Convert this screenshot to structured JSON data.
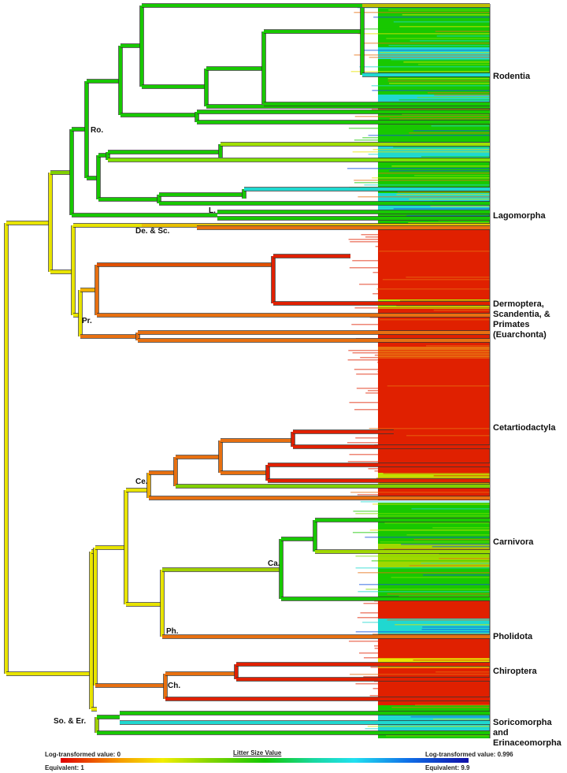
{
  "figure": {
    "type": "ancestral-state phylogeny",
    "trait": "Litter Size Value"
  },
  "clades": [
    {
      "id": "rodentia",
      "label": "Rodentia",
      "color": "#18c800"
    },
    {
      "id": "lagomorpha",
      "label": "Lagomorpha",
      "color": "#18c800"
    },
    {
      "id": "euarchonta",
      "label": "Dermoptera,\nScandentia, &\nPrimates\n(Euarchonta)",
      "color": "#e02000"
    },
    {
      "id": "cetartiodactyla",
      "label": "Cetartiodactyla",
      "color": "#e02000"
    },
    {
      "id": "carnivora",
      "label": "Carnivora",
      "color": "#18c800"
    },
    {
      "id": "pholidota",
      "label": "Pholidota",
      "color": "#e02000"
    },
    {
      "id": "chiroptera",
      "label": "Chiroptera",
      "color": "#e02000"
    },
    {
      "id": "soricomorpha",
      "label": "Soricomorpha and\nErinaceomorpha",
      "color": "#20c8c0"
    }
  ],
  "node_labels": [
    "Ro.",
    "L.",
    "De. & Sc.",
    "Pr.",
    "Ce.",
    "Ca.",
    "Ph.",
    "Ch.",
    "So. & Er."
  ],
  "legend": {
    "title": "Litter Size Value",
    "min_log": "Log-transformed value: 0",
    "min_equiv": "Equivalent: 1",
    "max_log": "Log-transformed value: 0.996",
    "max_equiv": "Equivalent: 9.9",
    "gradient": [
      "#e00000",
      "#f6a000",
      "#f2ee00",
      "#12c800",
      "#20e0f0",
      "#1010a8"
    ]
  }
}
